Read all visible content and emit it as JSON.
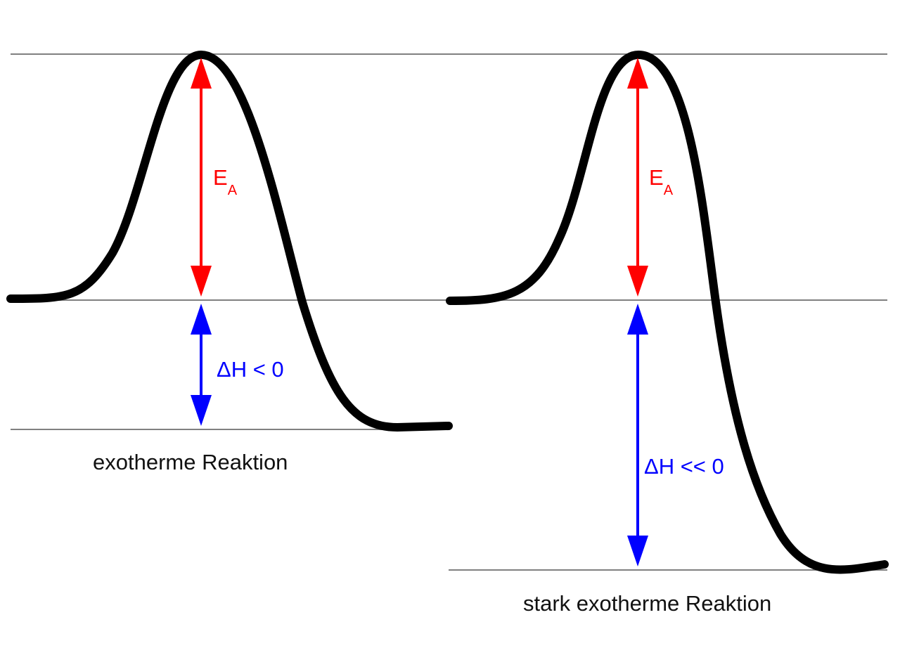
{
  "diagrams": [
    {
      "caption": "exotherme Reaktion",
      "activation_label": "E",
      "activation_subscript": "A",
      "enthalpy_label": "ΔH < 0"
    },
    {
      "caption": "stark exotherme Reaktion",
      "activation_label": "E",
      "activation_subscript": "A",
      "enthalpy_label": "ΔH << 0"
    }
  ],
  "colors": {
    "curve": "#000000",
    "reference_line": "#808080",
    "activation_arrow": "#ff0000",
    "enthalpy_arrow": "#0000ff"
  }
}
